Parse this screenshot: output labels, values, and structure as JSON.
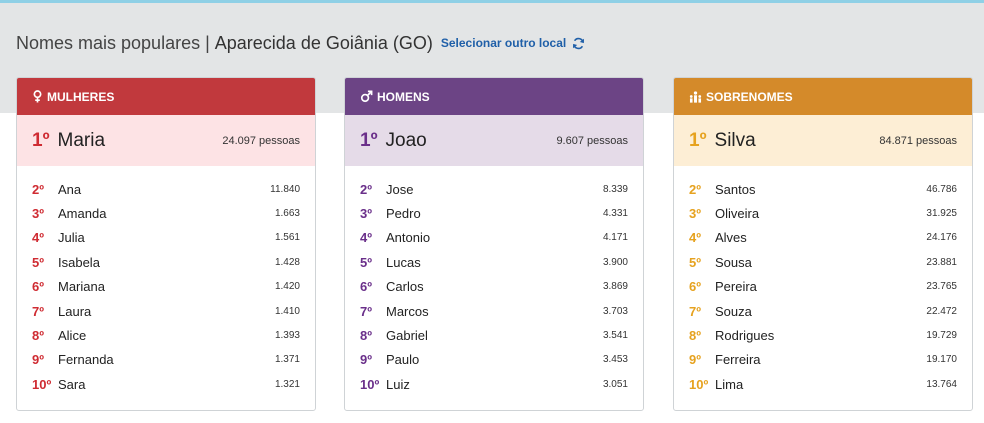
{
  "header": {
    "title_prefix": "Nomes mais populares",
    "separator": "|",
    "location": "Aparecida de Goiânia (GO)",
    "change_location": "Selecionar outro local"
  },
  "colors": {
    "women": "#c1393d",
    "men": "#6c4485",
    "surnames": "#d48a2a",
    "link": "#1f5fa8"
  },
  "women": {
    "icon": "female-icon",
    "title": "MULHERES",
    "first": {
      "rank": "1º",
      "name": "Maria",
      "count": "24.097 pessoas"
    },
    "rows": [
      {
        "rank": "2º",
        "name": "Ana",
        "count": "11.840"
      },
      {
        "rank": "3º",
        "name": "Amanda",
        "count": "1.663"
      },
      {
        "rank": "4º",
        "name": "Julia",
        "count": "1.561"
      },
      {
        "rank": "5º",
        "name": "Isabela",
        "count": "1.428"
      },
      {
        "rank": "6º",
        "name": "Mariana",
        "count": "1.420"
      },
      {
        "rank": "7º",
        "name": "Laura",
        "count": "1.410"
      },
      {
        "rank": "8º",
        "name": "Alice",
        "count": "1.393"
      },
      {
        "rank": "9º",
        "name": "Fernanda",
        "count": "1.371"
      },
      {
        "rank": "10º",
        "name": "Sara",
        "count": "1.321"
      }
    ]
  },
  "men": {
    "icon": "male-icon",
    "title": "HOMENS",
    "first": {
      "rank": "1º",
      "name": "Joao",
      "count": "9.607 pessoas"
    },
    "rows": [
      {
        "rank": "2º",
        "name": "Jose",
        "count": "8.339"
      },
      {
        "rank": "3º",
        "name": "Pedro",
        "count": "4.331"
      },
      {
        "rank": "4º",
        "name": "Antonio",
        "count": "4.171"
      },
      {
        "rank": "5º",
        "name": "Lucas",
        "count": "3.900"
      },
      {
        "rank": "6º",
        "name": "Carlos",
        "count": "3.869"
      },
      {
        "rank": "7º",
        "name": "Marcos",
        "count": "3.703"
      },
      {
        "rank": "8º",
        "name": "Gabriel",
        "count": "3.541"
      },
      {
        "rank": "9º",
        "name": "Paulo",
        "count": "3.453"
      },
      {
        "rank": "10º",
        "name": "Luiz",
        "count": "3.051"
      }
    ]
  },
  "surnames": {
    "icon": "family-icon",
    "title": "SOBRENOMES",
    "first": {
      "rank": "1º",
      "name": "Silva",
      "count": "84.871 pessoas"
    },
    "rows": [
      {
        "rank": "2º",
        "name": "Santos",
        "count": "46.786"
      },
      {
        "rank": "3º",
        "name": "Oliveira",
        "count": "31.925"
      },
      {
        "rank": "4º",
        "name": "Alves",
        "count": "24.176"
      },
      {
        "rank": "5º",
        "name": "Sousa",
        "count": "23.881"
      },
      {
        "rank": "6º",
        "name": "Pereira",
        "count": "23.765"
      },
      {
        "rank": "7º",
        "name": "Souza",
        "count": "22.472"
      },
      {
        "rank": "8º",
        "name": "Rodrigues",
        "count": "19.729"
      },
      {
        "rank": "9º",
        "name": "Ferreira",
        "count": "19.170"
      },
      {
        "rank": "10º",
        "name": "Lima",
        "count": "13.764"
      }
    ]
  }
}
